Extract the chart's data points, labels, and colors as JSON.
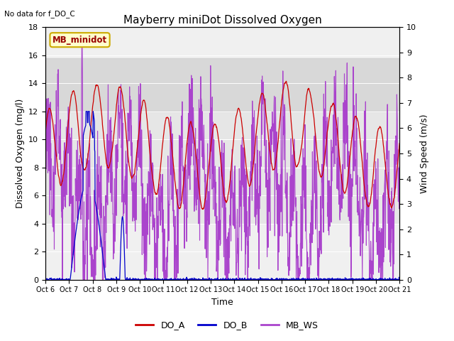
{
  "title": "Mayberry miniDot Dissolved Oxygen",
  "top_left_text": "No data for f_DO_C",
  "ylabel_left": "Dissolved Oxygen (mg/l)",
  "ylabel_right": "Wind Speed (m/s)",
  "xlabel": "Time",
  "ylim_left": [
    0,
    18
  ],
  "ylim_right": [
    0.0,
    10.0
  ],
  "yticks_left": [
    0,
    2,
    4,
    6,
    8,
    10,
    12,
    14,
    16,
    18
  ],
  "yticks_right": [
    0.0,
    1.0,
    2.0,
    3.0,
    4.0,
    5.0,
    6.0,
    7.0,
    8.0,
    9.0,
    10.0
  ],
  "xtick_labels": [
    "Oct 6",
    "Oct 7",
    "Oct 8",
    "Oct 9",
    "Oct 10",
    "Oct 11",
    "Oct 12",
    "Oct 13",
    "Oct 14",
    "Oct 15",
    "Oct 16",
    "Oct 17",
    "Oct 18",
    "Oct 19",
    "Oct 20",
    "Oct 21"
  ],
  "gray_band_dark": [
    12.0,
    15.8
  ],
  "gray_band_light": [
    4.0,
    12.0
  ],
  "legend_label": "MB_minidot",
  "line_color_do_a": "#cc0000",
  "line_color_do_b": "#0000cc",
  "line_color_mb_ws": "#aa44cc",
  "plot_bg": "#f0f0f0",
  "band_color_outer": "#d8d8d8",
  "band_color_inner": "#e8e8e8"
}
